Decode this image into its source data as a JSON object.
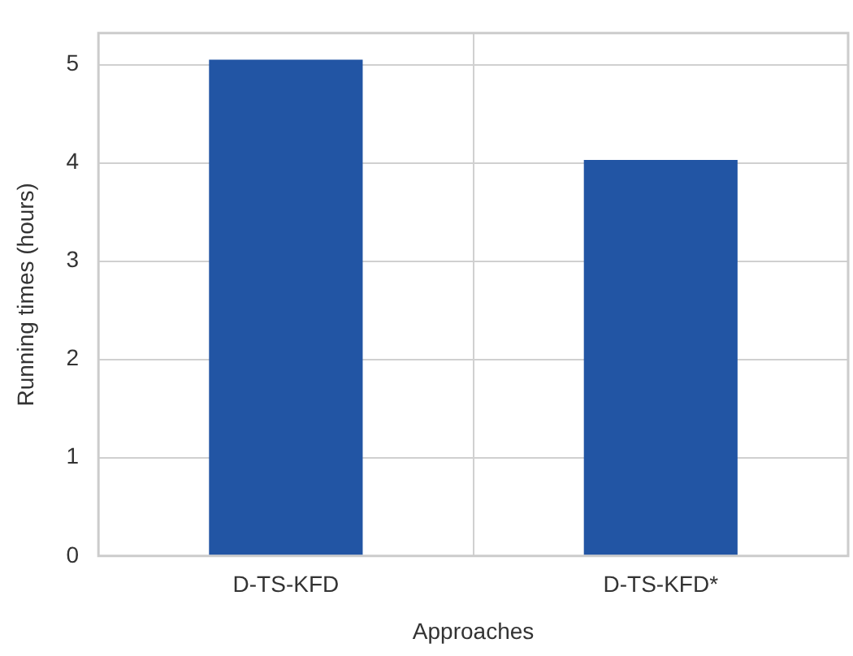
{
  "chart_data": {
    "type": "bar",
    "xlabel": "Approaches",
    "ylabel": "Running times (hours)",
    "categories": [
      "D-TS-KFD",
      "D-TS-KFD*"
    ],
    "values": [
      5.05,
      4.03
    ],
    "color": "#2255a4",
    "ylim": [
      0,
      5.32
    ],
    "yticks": [
      0,
      1,
      2,
      3,
      4,
      5
    ],
    "grid": true
  }
}
